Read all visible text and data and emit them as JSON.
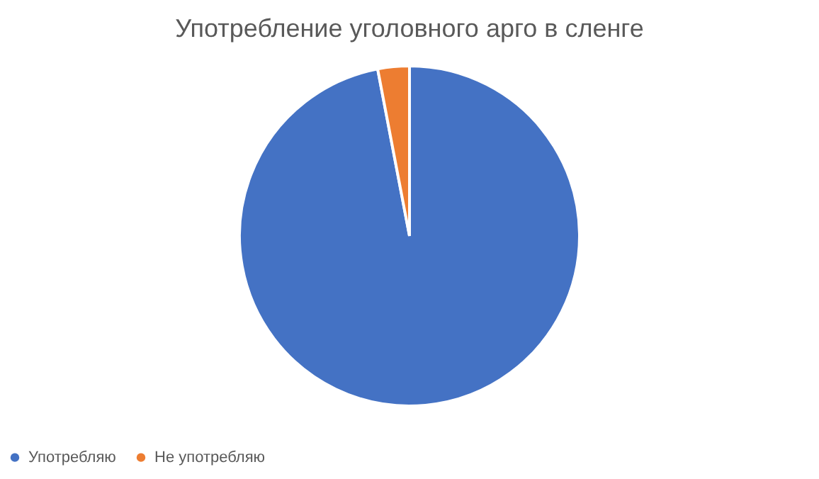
{
  "chart_data": {
    "type": "pie",
    "title": "Употребление уголовного арго в сленге",
    "categories": [
      "Употребляю",
      "Не употребляю"
    ],
    "values": [
      97,
      3
    ],
    "colors": [
      "#4472c4",
      "#ed7d31"
    ],
    "legend": "bottom"
  }
}
